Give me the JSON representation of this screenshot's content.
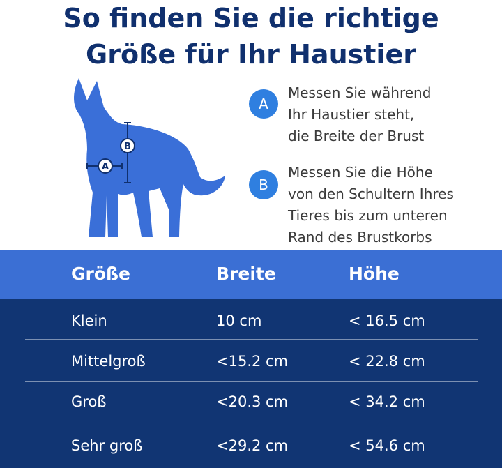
{
  "title": {
    "line1": "So finden Sie die richtige",
    "line2": "Größe für Ihr Haustier"
  },
  "dog_markers": {
    "a": "A",
    "b": "B"
  },
  "instructions": [
    {
      "badge": "A",
      "lines": [
        "Messen Sie während",
        "Ihr Haustier steht,",
        "die Breite der Brust"
      ]
    },
    {
      "badge": "B",
      "lines": [
        "Messen Sie die Höhe",
        "von den Schultern Ihres",
        "Tieres bis zum unteren",
        "Rand des Brustkorbs"
      ]
    }
  ],
  "table": {
    "headers": [
      "Größe",
      "Breite",
      "Höhe"
    ],
    "rows": [
      [
        "Klein",
        "10 cm",
        "< 16.5 cm"
      ],
      [
        "Mittelgroß",
        "<15.2 cm",
        "< 22.8 cm"
      ],
      [
        "Groß",
        "<20.3 cm",
        "< 34.2 cm"
      ],
      [
        "Sehr groß",
        "<29.2 cm",
        "< 54.6 cm"
      ]
    ]
  },
  "colors": {
    "title": "#10306e",
    "dog": "#3a6fd8",
    "badge": "#2f7fe0",
    "header_bar": "#3b6fd4",
    "table_body": "#113573"
  },
  "icons": [
    "dog-silhouette-icon"
  ]
}
